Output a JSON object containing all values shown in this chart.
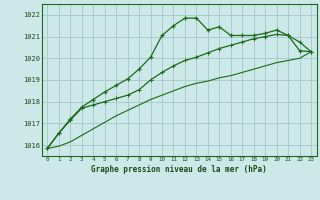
{
  "title": "Graphe pression niveau de la mer (hPa)",
  "bg_color": "#cce8e8",
  "grid_color": "#aacccc",
  "line_color": "#1a6b1a",
  "text_color": "#1a4a1a",
  "xlim": [
    -0.5,
    23.5
  ],
  "ylim": [
    1015.5,
    1022.5
  ],
  "yticks": [
    1016,
    1017,
    1018,
    1019,
    1020,
    1021,
    1022
  ],
  "xticks": [
    0,
    1,
    2,
    3,
    4,
    5,
    6,
    7,
    8,
    9,
    10,
    11,
    12,
    13,
    14,
    15,
    16,
    17,
    18,
    19,
    20,
    21,
    22,
    23
  ],
  "series1_x": [
    0,
    1,
    2,
    3,
    4,
    5,
    6,
    7,
    8,
    9,
    10,
    11,
    12,
    13,
    14,
    15,
    16,
    17,
    18,
    19,
    20,
    21,
    22,
    23
  ],
  "series1_y": [
    1015.85,
    1016.55,
    1017.2,
    1017.75,
    1018.1,
    1018.45,
    1018.75,
    1019.05,
    1019.5,
    1020.05,
    1021.05,
    1021.5,
    1021.85,
    1021.85,
    1021.3,
    1021.45,
    1021.05,
    1021.05,
    1021.05,
    1021.15,
    1021.3,
    1021.05,
    1020.35,
    1020.3
  ],
  "series2_x": [
    0,
    1,
    2,
    3,
    4,
    5,
    6,
    7,
    8,
    9,
    10,
    11,
    12,
    13,
    14,
    15,
    16,
    17,
    18,
    19,
    20,
    21,
    22,
    23
  ],
  "series2_y": [
    1015.85,
    1016.55,
    1017.15,
    1017.7,
    1017.85,
    1018.0,
    1018.15,
    1018.3,
    1018.55,
    1019.0,
    1019.35,
    1019.65,
    1019.9,
    1020.05,
    1020.25,
    1020.45,
    1020.6,
    1020.75,
    1020.9,
    1021.0,
    1021.1,
    1021.05,
    1020.75,
    1020.3
  ],
  "series3_x": [
    0,
    1,
    2,
    3,
    4,
    5,
    6,
    7,
    8,
    9,
    10,
    11,
    12,
    13,
    14,
    15,
    16,
    17,
    18,
    19,
    20,
    21,
    22,
    23
  ],
  "series3_y": [
    1015.85,
    1015.95,
    1016.15,
    1016.45,
    1016.75,
    1017.05,
    1017.35,
    1017.6,
    1017.85,
    1018.1,
    1018.3,
    1018.5,
    1018.7,
    1018.85,
    1018.95,
    1019.1,
    1019.2,
    1019.35,
    1019.5,
    1019.65,
    1019.8,
    1019.9,
    1020.0,
    1020.3
  ]
}
